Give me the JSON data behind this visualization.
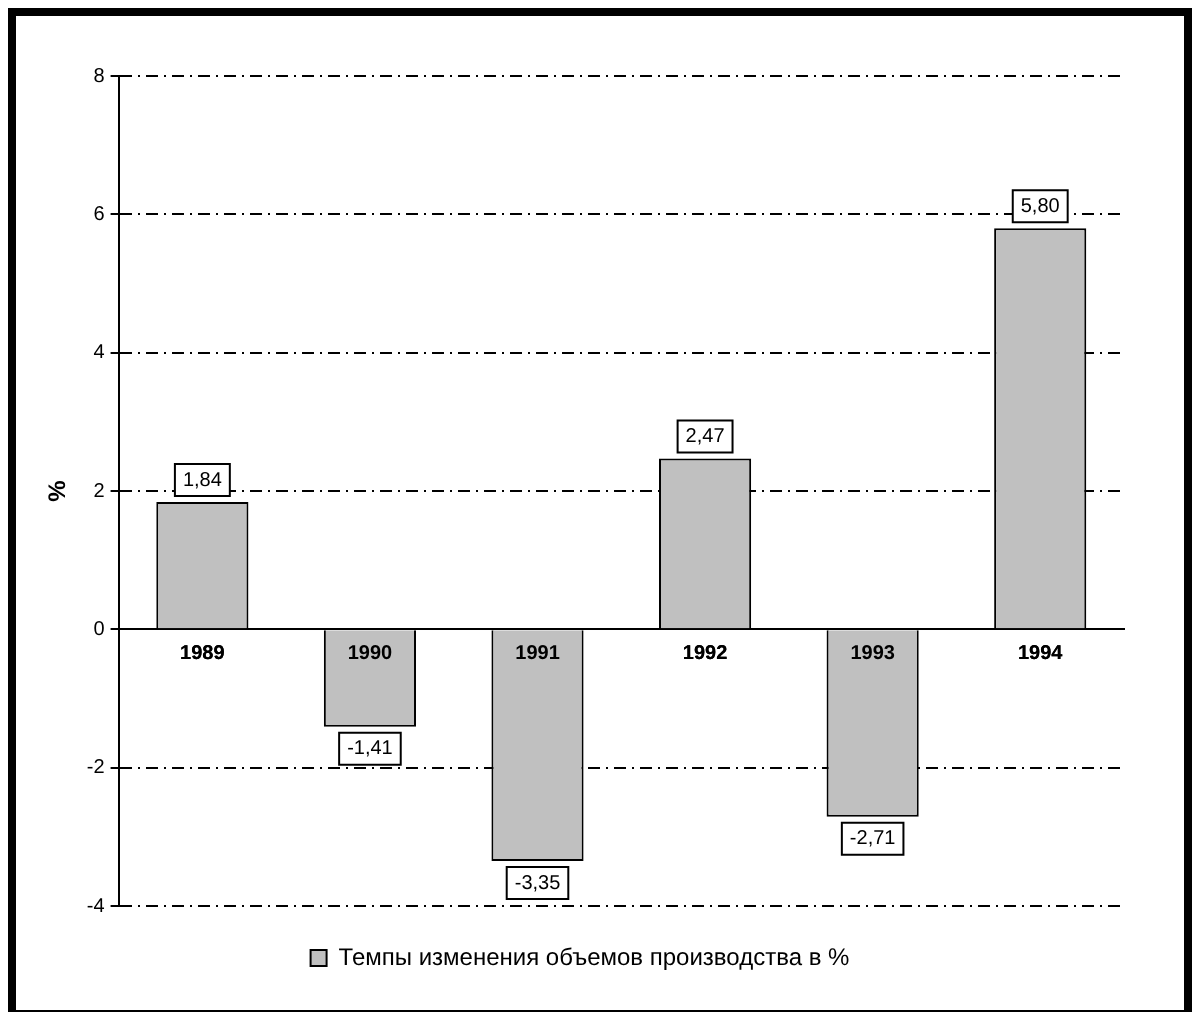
{
  "chart_data": {
    "type": "bar",
    "ylabel": "%",
    "categories": [
      "1989",
      "1990",
      "1991",
      "1992",
      "1993",
      "1994"
    ],
    "series": [
      {
        "name": "Темпы изменения объемов производства в %",
        "color": "#c0c0c0",
        "values": [
          1.84,
          -1.41,
          -3.35,
          2.47,
          -2.71,
          5.8
        ],
        "value_labels": [
          "1,84",
          "-1,41",
          "-3,35",
          "2,47",
          "-2,71",
          "5,80"
        ]
      }
    ],
    "ylim": [
      -4,
      8
    ],
    "yticks": [
      -4,
      -2,
      0,
      2,
      4,
      6,
      8
    ],
    "grid": "y",
    "legend": "bottom"
  }
}
